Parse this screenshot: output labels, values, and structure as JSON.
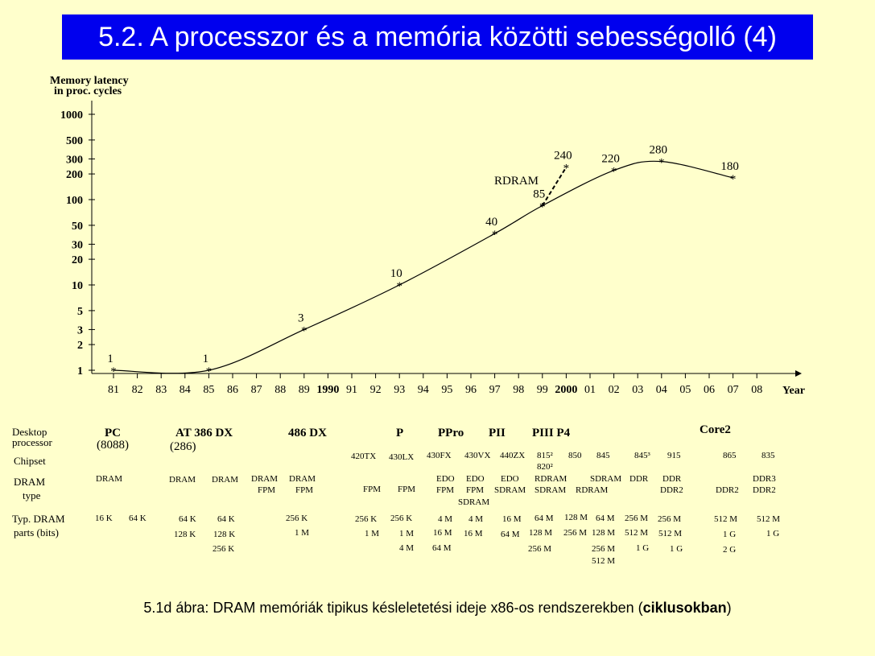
{
  "title": "5.2. A processzor és a memória közötti sebességolló (4)",
  "caption": {
    "prefix": "5.1d ábra: DRAM memóriák tipikus késleletetési ideje x86-os rendszerekben (",
    "bold": "ciklusokban",
    "suffix": ")"
  },
  "chart_data": {
    "type": "line",
    "ylabel_line1": "Memory latency",
    "ylabel_line2": "in proc. cycles",
    "xlabel": "Year",
    "yscale": "log",
    "ylim": [
      1,
      1000
    ],
    "yticks": [
      1,
      2,
      3,
      5,
      10,
      20,
      30,
      50,
      100,
      200,
      300,
      500,
      1000
    ],
    "ytick_labels": [
      "1",
      "2",
      "3",
      "5",
      "10",
      "20",
      "30",
      "50",
      "100",
      "200",
      "300",
      "500",
      "1000"
    ],
    "xticks": [
      {
        "label": "81",
        "bold": false
      },
      {
        "label": "82",
        "bold": false
      },
      {
        "label": "83",
        "bold": false
      },
      {
        "label": "84",
        "bold": false
      },
      {
        "label": "85",
        "bold": false
      },
      {
        "label": "86",
        "bold": false
      },
      {
        "label": "87",
        "bold": false
      },
      {
        "label": "88",
        "bold": false
      },
      {
        "label": "89",
        "bold": false
      },
      {
        "label": "1990",
        "bold": true
      },
      {
        "label": "91",
        "bold": false
      },
      {
        "label": "92",
        "bold": false
      },
      {
        "label": "93",
        "bold": false
      },
      {
        "label": "94",
        "bold": false
      },
      {
        "label": "95",
        "bold": false
      },
      {
        "label": "96",
        "bold": false
      },
      {
        "label": "97",
        "bold": false
      },
      {
        "label": "98",
        "bold": false
      },
      {
        "label": "99",
        "bold": false
      },
      {
        "label": "2000",
        "bold": true
      },
      {
        "label": "01",
        "bold": false
      },
      {
        "label": "02",
        "bold": false
      },
      {
        "label": "03",
        "bold": false
      },
      {
        "label": "04",
        "bold": false
      },
      {
        "label": "05",
        "bold": false
      },
      {
        "label": "06",
        "bold": false
      },
      {
        "label": "07",
        "bold": false
      },
      {
        "label": "08",
        "bold": false
      }
    ],
    "x_start_year": 1981,
    "series": [
      {
        "points": [
          {
            "x": 1981,
            "y": 1,
            "label": "1"
          },
          {
            "x": 1985,
            "y": 1,
            "label": "1"
          },
          {
            "x": 1989,
            "y": 3,
            "label": "3"
          },
          {
            "x": 1993,
            "y": 10,
            "label": "10"
          },
          {
            "x": 1997,
            "y": 40,
            "label": "40"
          },
          {
            "x": 1999,
            "y": 85,
            "label": "85"
          },
          {
            "x": 2002,
            "y": 220,
            "label": "220"
          },
          {
            "x": 2004,
            "y": 280,
            "label": "280"
          },
          {
            "x": 2007,
            "y": 180,
            "label": "180"
          }
        ]
      },
      {
        "name": "RDRAM",
        "dashed": true,
        "points": [
          {
            "x": 1999,
            "y": 85
          },
          {
            "x": 2000,
            "y": 240,
            "label": "240"
          }
        ]
      }
    ],
    "line_color": "#000000"
  },
  "table": {
    "row_labels": [
      "Desktop",
      "processor",
      "Chipset",
      "DRAM",
      "type",
      "Typ. DRAM",
      "parts (bits)"
    ],
    "processors": [
      {
        "name": "PC",
        "sub": "(8088)"
      },
      {
        "name": "AT 386 DX",
        "sub": "(286)"
      },
      {
        "name": "486 DX",
        "sub": ""
      },
      {
        "name": "P",
        "sub": ""
      },
      {
        "name": "PPro",
        "sub": ""
      },
      {
        "name": "PII",
        "sub": ""
      },
      {
        "name": "PIII  P4",
        "sub": ""
      },
      {
        "name": "Core2",
        "sub": ""
      }
    ],
    "chipsets": [
      "420TX",
      "430LX",
      "430FX",
      "430VX",
      "440ZX",
      "815²",
      "820²",
      "850",
      "845",
      "845³",
      "915",
      "865",
      "835"
    ],
    "dram_types": [
      "DRAM",
      "DRAM",
      "DRAM",
      "DRAM",
      "FPM",
      "DRAM",
      "FPM",
      "FPM",
      "FPM",
      "EDO",
      "FPM",
      "EDO",
      "FPM",
      "SDRAM",
      "EDO",
      "SDRAM",
      "RDRAM",
      "SDRAM",
      "SDRAM",
      "RDRAM",
      "DDR",
      "DDR",
      "DDR2",
      "DDR2",
      "DDR3",
      "DDR2"
    ],
    "parts": [
      "16 K",
      "64 K",
      "64 K",
      "128 K",
      "64 K",
      "128 K",
      "256 K",
      "256 K",
      "1 M",
      "256 K",
      "1 M",
      "256 K",
      "1 M",
      "4 M",
      "4 M",
      "16 M",
      "64 M",
      "4 M",
      "16 M",
      "16 M",
      "64 M",
      "64 M",
      "128 M",
      "256 M",
      "128 M",
      "256 M",
      "64 M",
      "128 M",
      "256 M",
      "512 M",
      "256 M",
      "512 M",
      "1 G",
      "256 M",
      "512 M",
      "1 G",
      "512 M",
      "1 G",
      "2 G",
      "512 M",
      "1 G"
    ]
  }
}
